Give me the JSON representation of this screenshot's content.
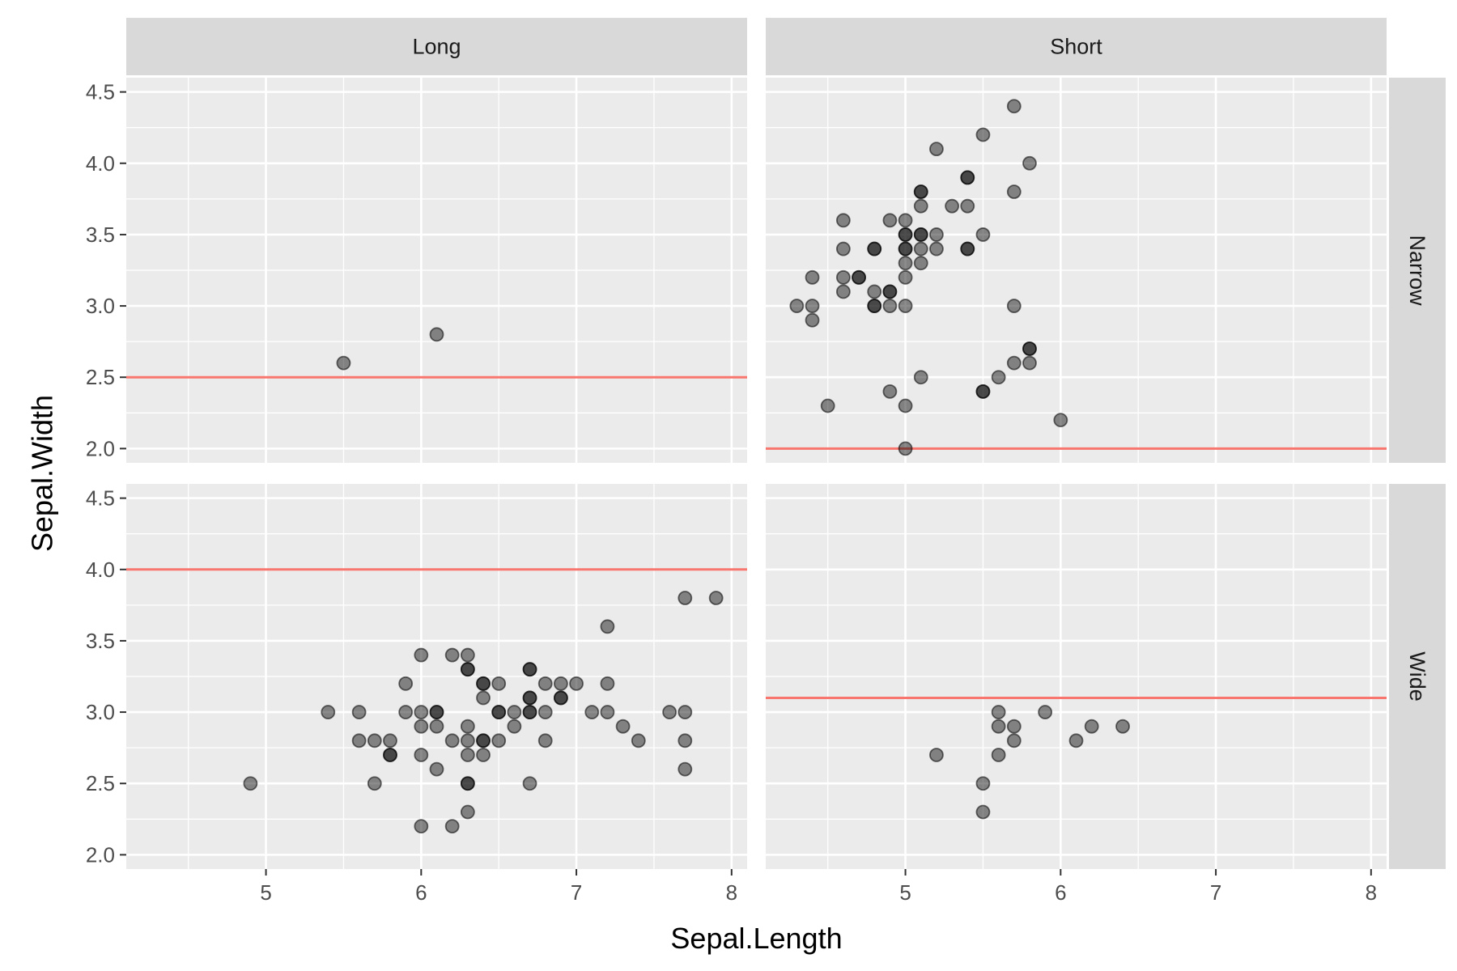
{
  "chart_data": {
    "type": "scatter",
    "facet_type": "grid",
    "xlabel": "Sepal.Length",
    "ylabel": "Sepal.Width",
    "xlim": [
      4.1,
      8.1
    ],
    "ylim": [
      1.9,
      4.6
    ],
    "x_ticks": [
      "5",
      "6",
      "7",
      "8"
    ],
    "y_ticks": [
      "2.0",
      "2.5",
      "3.0",
      "3.5",
      "4.0",
      "4.5"
    ],
    "grid": true,
    "column_strips": [
      "Long",
      "Short"
    ],
    "row_strips": [
      "Narrow",
      "Wide"
    ],
    "point_color": "#000000",
    "point_alpha": 0.45,
    "hline_color": "#f8766d",
    "panel_background": "#ebebeb",
    "strip_background": "#d9d9d9",
    "panels": [
      {
        "col": "Long",
        "row": "Narrow",
        "hline": 2.5,
        "points": [
          [
            5.5,
            2.6
          ],
          [
            6.1,
            2.8
          ]
        ]
      },
      {
        "col": "Short",
        "row": "Narrow",
        "hline": 2.0,
        "points": [
          [
            5.7,
            4.4
          ],
          [
            5.5,
            4.2
          ],
          [
            5.2,
            4.1
          ],
          [
            5.8,
            4.0
          ],
          [
            5.1,
            3.8
          ],
          [
            5.1,
            3.8
          ],
          [
            5.4,
            3.9
          ],
          [
            5.4,
            3.9
          ],
          [
            5.7,
            3.8
          ],
          [
            5.1,
            3.7
          ],
          [
            5.3,
            3.7
          ],
          [
            5.4,
            3.7
          ],
          [
            4.6,
            3.6
          ],
          [
            4.9,
            3.6
          ],
          [
            5.0,
            3.6
          ],
          [
            5.0,
            3.5
          ],
          [
            5.0,
            3.5
          ],
          [
            5.1,
            3.5
          ],
          [
            5.1,
            3.5
          ],
          [
            5.2,
            3.5
          ],
          [
            5.5,
            3.5
          ],
          [
            4.6,
            3.4
          ],
          [
            4.8,
            3.4
          ],
          [
            4.8,
            3.4
          ],
          [
            5.0,
            3.4
          ],
          [
            5.0,
            3.4
          ],
          [
            5.1,
            3.4
          ],
          [
            5.2,
            3.4
          ],
          [
            5.4,
            3.4
          ],
          [
            5.4,
            3.4
          ],
          [
            5.0,
            3.3
          ],
          [
            5.1,
            3.3
          ],
          [
            4.4,
            3.2
          ],
          [
            4.6,
            3.2
          ],
          [
            4.7,
            3.2
          ],
          [
            4.7,
            3.2
          ],
          [
            5.0,
            3.2
          ],
          [
            4.6,
            3.1
          ],
          [
            4.8,
            3.1
          ],
          [
            4.9,
            3.1
          ],
          [
            4.9,
            3.1
          ],
          [
            4.3,
            3.0
          ],
          [
            4.4,
            3.0
          ],
          [
            4.8,
            3.0
          ],
          [
            4.8,
            3.0
          ],
          [
            4.9,
            3.0
          ],
          [
            5.0,
            3.0
          ],
          [
            5.7,
            3.0
          ],
          [
            4.4,
            2.9
          ],
          [
            5.8,
            2.7
          ],
          [
            5.8,
            2.7
          ],
          [
            5.7,
            2.6
          ],
          [
            5.8,
            2.6
          ],
          [
            5.1,
            2.5
          ],
          [
            5.6,
            2.5
          ],
          [
            4.9,
            2.4
          ],
          [
            5.5,
            2.4
          ],
          [
            5.5,
            2.4
          ],
          [
            4.5,
            2.3
          ],
          [
            5.0,
            2.3
          ],
          [
            6.0,
            2.2
          ],
          [
            5.0,
            2.0
          ]
        ]
      },
      {
        "col": "Long",
        "row": "Wide",
        "hline": 4.0,
        "points": [
          [
            7.7,
            3.8
          ],
          [
            7.9,
            3.8
          ],
          [
            7.2,
            3.6
          ],
          [
            6.0,
            3.4
          ],
          [
            6.2,
            3.4
          ],
          [
            6.3,
            3.4
          ],
          [
            6.3,
            3.3
          ],
          [
            6.3,
            3.3
          ],
          [
            6.7,
            3.3
          ],
          [
            6.7,
            3.3
          ],
          [
            5.9,
            3.2
          ],
          [
            6.4,
            3.2
          ],
          [
            6.4,
            3.2
          ],
          [
            6.5,
            3.2
          ],
          [
            6.8,
            3.2
          ],
          [
            6.9,
            3.2
          ],
          [
            7.0,
            3.2
          ],
          [
            7.2,
            3.2
          ],
          [
            6.4,
            3.1
          ],
          [
            6.7,
            3.1
          ],
          [
            6.7,
            3.1
          ],
          [
            6.9,
            3.1
          ],
          [
            6.9,
            3.1
          ],
          [
            5.4,
            3.0
          ],
          [
            5.6,
            3.0
          ],
          [
            5.9,
            3.0
          ],
          [
            6.0,
            3.0
          ],
          [
            6.1,
            3.0
          ],
          [
            6.1,
            3.0
          ],
          [
            6.5,
            3.0
          ],
          [
            6.5,
            3.0
          ],
          [
            6.6,
            3.0
          ],
          [
            6.7,
            3.0
          ],
          [
            6.7,
            3.0
          ],
          [
            6.8,
            3.0
          ],
          [
            7.1,
            3.0
          ],
          [
            7.2,
            3.0
          ],
          [
            7.6,
            3.0
          ],
          [
            7.7,
            3.0
          ],
          [
            6.0,
            2.9
          ],
          [
            6.1,
            2.9
          ],
          [
            6.3,
            2.9
          ],
          [
            6.6,
            2.9
          ],
          [
            7.3,
            2.9
          ],
          [
            5.6,
            2.8
          ],
          [
            5.7,
            2.8
          ],
          [
            5.8,
            2.8
          ],
          [
            6.2,
            2.8
          ],
          [
            6.3,
            2.8
          ],
          [
            6.4,
            2.8
          ],
          [
            6.4,
            2.8
          ],
          [
            6.5,
            2.8
          ],
          [
            6.8,
            2.8
          ],
          [
            7.4,
            2.8
          ],
          [
            7.7,
            2.8
          ],
          [
            5.8,
            2.7
          ],
          [
            5.8,
            2.7
          ],
          [
            6.0,
            2.7
          ],
          [
            6.3,
            2.7
          ],
          [
            6.4,
            2.7
          ],
          [
            6.1,
            2.6
          ],
          [
            7.7,
            2.6
          ],
          [
            4.9,
            2.5
          ],
          [
            5.7,
            2.5
          ],
          [
            6.3,
            2.5
          ],
          [
            6.3,
            2.5
          ],
          [
            6.7,
            2.5
          ],
          [
            6.3,
            2.3
          ],
          [
            6.0,
            2.2
          ],
          [
            6.2,
            2.2
          ]
        ]
      },
      {
        "col": "Short",
        "row": "Wide",
        "hline": 3.1,
        "points": [
          [
            5.9,
            3.0
          ],
          [
            5.6,
            3.0
          ],
          [
            5.6,
            2.9
          ],
          [
            5.7,
            2.9
          ],
          [
            6.2,
            2.9
          ],
          [
            6.4,
            2.9
          ],
          [
            5.7,
            2.8
          ],
          [
            6.1,
            2.8
          ],
          [
            5.2,
            2.7
          ],
          [
            5.6,
            2.7
          ],
          [
            5.5,
            2.5
          ],
          [
            5.5,
            2.3
          ]
        ]
      }
    ]
  }
}
